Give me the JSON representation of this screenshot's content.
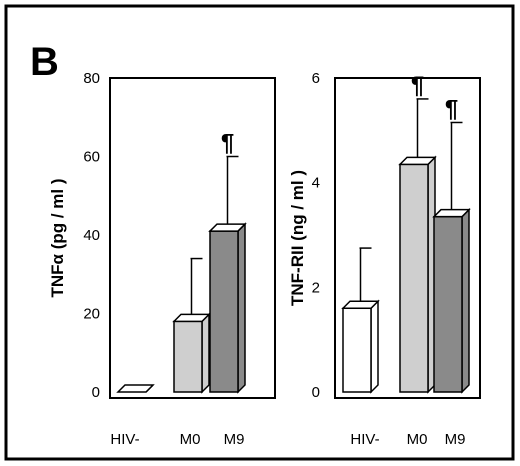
{
  "panel_label": "B",
  "chart_data": [
    {
      "type": "bar",
      "ylabel": "TNFα (pg / ml )",
      "ylim": [
        0,
        80
      ],
      "yticks": [
        "0",
        "20",
        "40",
        "60",
        "80"
      ],
      "categories": [
        "HIV-",
        "M0",
        "M9"
      ],
      "values": [
        0,
        18,
        41
      ],
      "error": [
        0,
        16,
        19
      ],
      "significance": [
        "",
        "",
        "¶"
      ],
      "colors": [
        "#ffffff",
        "#cfcfcf",
        "#8a8a8a"
      ]
    },
    {
      "type": "bar",
      "ylabel": "TNF-RII (ng / ml )",
      "ylim": [
        0,
        6
      ],
      "yticks": [
        "0",
        "2",
        "4",
        "6"
      ],
      "categories": [
        "HIV-",
        "M0",
        "M9"
      ],
      "values": [
        1.6,
        4.35,
        3.35
      ],
      "error": [
        1.15,
        1.25,
        1.8
      ],
      "significance": [
        "",
        "¶",
        "¶"
      ],
      "colors": [
        "#ffffff",
        "#cfcfcf",
        "#8a8a8a"
      ]
    }
  ]
}
